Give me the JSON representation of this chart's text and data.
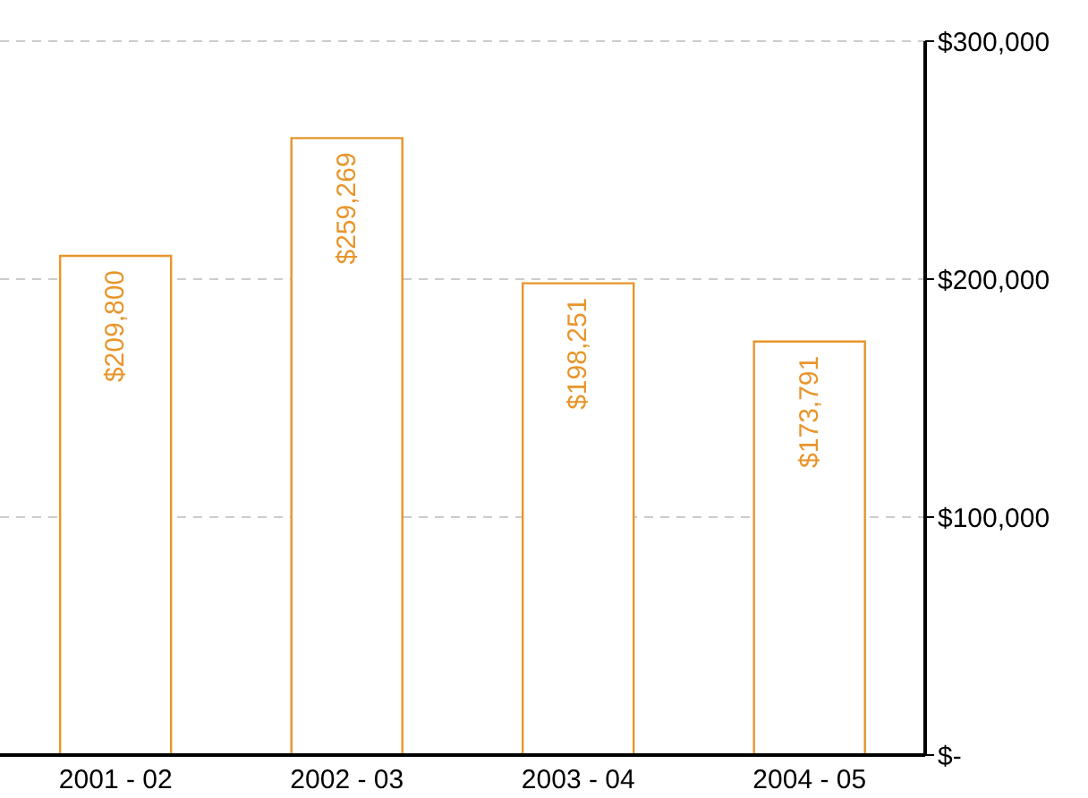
{
  "chart_data": {
    "type": "bar",
    "categories": [
      "2001 - 02",
      "2002 - 03",
      "2003 - 04",
      "2004 - 05"
    ],
    "values": [
      209800,
      259269,
      198251,
      173791
    ],
    "color": "#e8952a",
    "data_labels": true,
    "value_labels": [
      "$209,800",
      "$259,269",
      "$198,251",
      "$173,791"
    ],
    "ylim": [
      0,
      300000
    ],
    "yticks": [
      {
        "value": 0,
        "label": "$-"
      },
      {
        "value": 100000,
        "label": "$100,000"
      },
      {
        "value": 200000,
        "label": "$200,000"
      },
      {
        "value": 300000,
        "label": "$300,000"
      }
    ],
    "grid": "y",
    "legend": false
  }
}
